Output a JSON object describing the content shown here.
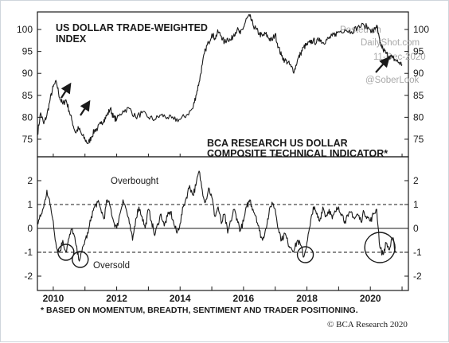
{
  "chart_data": [
    {
      "type": "line",
      "title": "US DOLLAR TRADE-WEIGHTED INDEX",
      "y_ticks": [
        75,
        80,
        85,
        90,
        95,
        100
      ],
      "ylim": [
        71,
        104
      ],
      "xlim": [
        2009.5,
        2021.2
      ],
      "series": [
        {
          "x": [
            2009.5,
            2009.6,
            2009.7,
            2009.8,
            2009.9,
            2010.0,
            2010.1,
            2010.2,
            2010.3,
            2010.4,
            2010.5,
            2010.6,
            2010.7,
            2010.8,
            2010.9,
            2011.0,
            2011.1,
            2011.2,
            2011.3,
            2011.4,
            2011.5,
            2011.6,
            2011.7,
            2011.8,
            2011.9,
            2012.0,
            2012.2,
            2012.4,
            2012.6,
            2012.8,
            2013.0,
            2013.2,
            2013.4,
            2013.6,
            2013.8,
            2014.0,
            2014.2,
            2014.4,
            2014.5,
            2014.6,
            2014.7,
            2014.8,
            2014.9,
            2015.0,
            2015.1,
            2015.2,
            2015.3,
            2015.4,
            2015.5,
            2015.6,
            2015.7,
            2015.8,
            2015.9,
            2016.0,
            2016.1,
            2016.2,
            2016.3,
            2016.4,
            2016.5,
            2016.6,
            2016.7,
            2016.8,
            2016.9,
            2017.0,
            2017.1,
            2017.2,
            2017.3,
            2017.4,
            2017.5,
            2017.6,
            2017.7,
            2017.8,
            2017.9,
            2018.0,
            2018.1,
            2018.2,
            2018.3,
            2018.4,
            2018.5,
            2018.6,
            2018.7,
            2018.8,
            2018.9,
            2019.0,
            2019.2,
            2019.4,
            2019.6,
            2019.8,
            2020.0,
            2020.1,
            2020.2,
            2020.25,
            2020.3,
            2020.4,
            2020.5,
            2020.6,
            2020.7,
            2020.8,
            2020.9,
            2021.0
          ],
          "y": [
            76.0,
            81.0,
            78.5,
            80.5,
            84.0,
            87.0,
            88.0,
            84.5,
            83.0,
            84.0,
            81.5,
            79.0,
            76.5,
            77.5,
            76.0,
            75.0,
            74.0,
            75.5,
            77.0,
            77.5,
            78.5,
            79.5,
            80.5,
            82.0,
            80.0,
            79.5,
            81.5,
            82.0,
            80.0,
            81.0,
            80.0,
            79.5,
            80.5,
            80.0,
            79.5,
            79.5,
            80.5,
            82.0,
            85.0,
            88.0,
            92.0,
            95.5,
            97.0,
            99.0,
            98.0,
            99.5,
            98.5,
            97.0,
            98.0,
            97.5,
            99.0,
            100.0,
            99.0,
            100.5,
            102.5,
            103.0,
            101.0,
            100.0,
            99.0,
            98.5,
            99.0,
            98.0,
            97.5,
            99.0,
            96.0,
            94.0,
            93.0,
            92.5,
            91.5,
            90.5,
            93.0,
            94.5,
            96.0,
            96.5,
            97.0,
            97.5,
            97.0,
            98.0,
            97.0,
            97.5,
            98.0,
            98.5,
            99.0,
            99.5,
            100.0,
            99.5,
            100.5,
            101.0,
            100.0,
            99.5,
            101.0,
            99.0,
            97.0,
            95.5,
            94.5,
            94.0,
            93.5,
            93.0,
            92.5,
            92.0
          ]
        }
      ]
    },
    {
      "type": "line",
      "title": "BCA RESEARCH US DOLLAR COMPOSITE TECHNICAL INDICATOR*",
      "y_ticks": [
        -2,
        -1,
        0,
        1,
        2
      ],
      "ylim": [
        -2.6,
        3.0
      ],
      "xlim": [
        2009.5,
        2021.2
      ],
      "x_ticks": [
        "2010",
        "2012",
        "2014",
        "2016",
        "2018",
        "2020"
      ],
      "reference_lines": [
        1,
        0,
        -1
      ],
      "annotations": [
        "Overbought",
        "Oversold"
      ],
      "oversold_circles": [
        {
          "x": 2010.4,
          "y": -1.0
        },
        {
          "x": 2010.85,
          "y": -1.3
        },
        {
          "x": 2017.95,
          "y": -1.1
        },
        {
          "x": 2020.3,
          "y": -0.8
        }
      ],
      "series": [
        {
          "x": [
            2009.5,
            2009.6,
            2009.7,
            2009.8,
            2009.9,
            2010.0,
            2010.1,
            2010.2,
            2010.3,
            2010.4,
            2010.5,
            2010.6,
            2010.7,
            2010.8,
            2010.9,
            2011.0,
            2011.1,
            2011.2,
            2011.3,
            2011.4,
            2011.5,
            2011.6,
            2011.7,
            2011.8,
            2011.9,
            2012.0,
            2012.1,
            2012.2,
            2012.3,
            2012.4,
            2012.5,
            2012.6,
            2012.7,
            2012.8,
            2012.9,
            2013.0,
            2013.1,
            2013.2,
            2013.3,
            2013.4,
            2013.5,
            2013.6,
            2013.7,
            2013.8,
            2013.9,
            2014.0,
            2014.1,
            2014.2,
            2014.3,
            2014.4,
            2014.5,
            2014.6,
            2014.7,
            2014.8,
            2014.9,
            2015.0,
            2015.1,
            2015.2,
            2015.3,
            2015.4,
            2015.5,
            2015.6,
            2015.7,
            2015.8,
            2015.9,
            2016.0,
            2016.1,
            2016.2,
            2016.3,
            2016.4,
            2016.5,
            2016.6,
            2016.7,
            2016.8,
            2016.9,
            2017.0,
            2017.1,
            2017.2,
            2017.3,
            2017.4,
            2017.5,
            2017.6,
            2017.7,
            2017.8,
            2017.9,
            2018.0,
            2018.1,
            2018.2,
            2018.3,
            2018.4,
            2018.5,
            2018.6,
            2018.7,
            2018.8,
            2018.9,
            2019.0,
            2019.1,
            2019.2,
            2019.3,
            2019.4,
            2019.5,
            2019.6,
            2019.7,
            2019.8,
            2019.9,
            2020.0,
            2020.1,
            2020.2,
            2020.3,
            2020.4,
            2020.5,
            2020.6,
            2020.7,
            2020.8
          ],
          "y": [
            0.2,
            0.5,
            0.9,
            1.6,
            1.0,
            0.3,
            -0.8,
            -1.0,
            -0.5,
            -1.0,
            -0.4,
            0.0,
            -0.6,
            -1.3,
            -1.0,
            -0.5,
            -0.2,
            0.5,
            0.9,
            1.1,
            0.8,
            0.4,
            1.2,
            0.9,
            0.3,
            0.0,
            0.6,
            1.2,
            0.8,
            0.2,
            -0.5,
            0.4,
            0.9,
            0.5,
            0.0,
            0.8,
            0.3,
            -0.3,
            0.2,
            0.6,
            0.1,
            0.5,
            0.7,
            0.2,
            -0.2,
            0.2,
            0.9,
            1.3,
            1.8,
            1.4,
            1.8,
            2.4,
            1.6,
            1.1,
            1.7,
            1.3,
            0.5,
            0.9,
            0.2,
            0.6,
            -0.2,
            0.3,
            0.8,
            0.4,
            -0.1,
            0.3,
            0.9,
            1.2,
            0.8,
            0.5,
            -0.1,
            -0.5,
            0.0,
            0.6,
            1.1,
            0.8,
            0.0,
            -0.5,
            -0.2,
            -0.6,
            -0.8,
            -0.9,
            -0.5,
            -0.7,
            -1.2,
            -0.6,
            0.1,
            0.9,
            0.6,
            0.3,
            0.9,
            0.5,
            0.8,
            0.4,
            0.7,
            0.9,
            0.6,
            0.3,
            0.5,
            0.7,
            0.4,
            0.6,
            0.3,
            0.7,
            0.5,
            0.3,
            0.6,
            0.8,
            -0.8,
            -1.1,
            -0.6,
            -0.9,
            -0.4,
            -1.0
          ]
        }
      ]
    }
  ],
  "watermark": {
    "line1": "Posted on",
    "line2": "DailyShot.com",
    "line3": "11-Dec-2020",
    "line4": "@SoberLook"
  },
  "footnote": "* BASED ON MOMENTUM, BREADTH, SENTIMENT AND TRADER POSITIONING.",
  "credit": "© BCΑ Research 2020"
}
